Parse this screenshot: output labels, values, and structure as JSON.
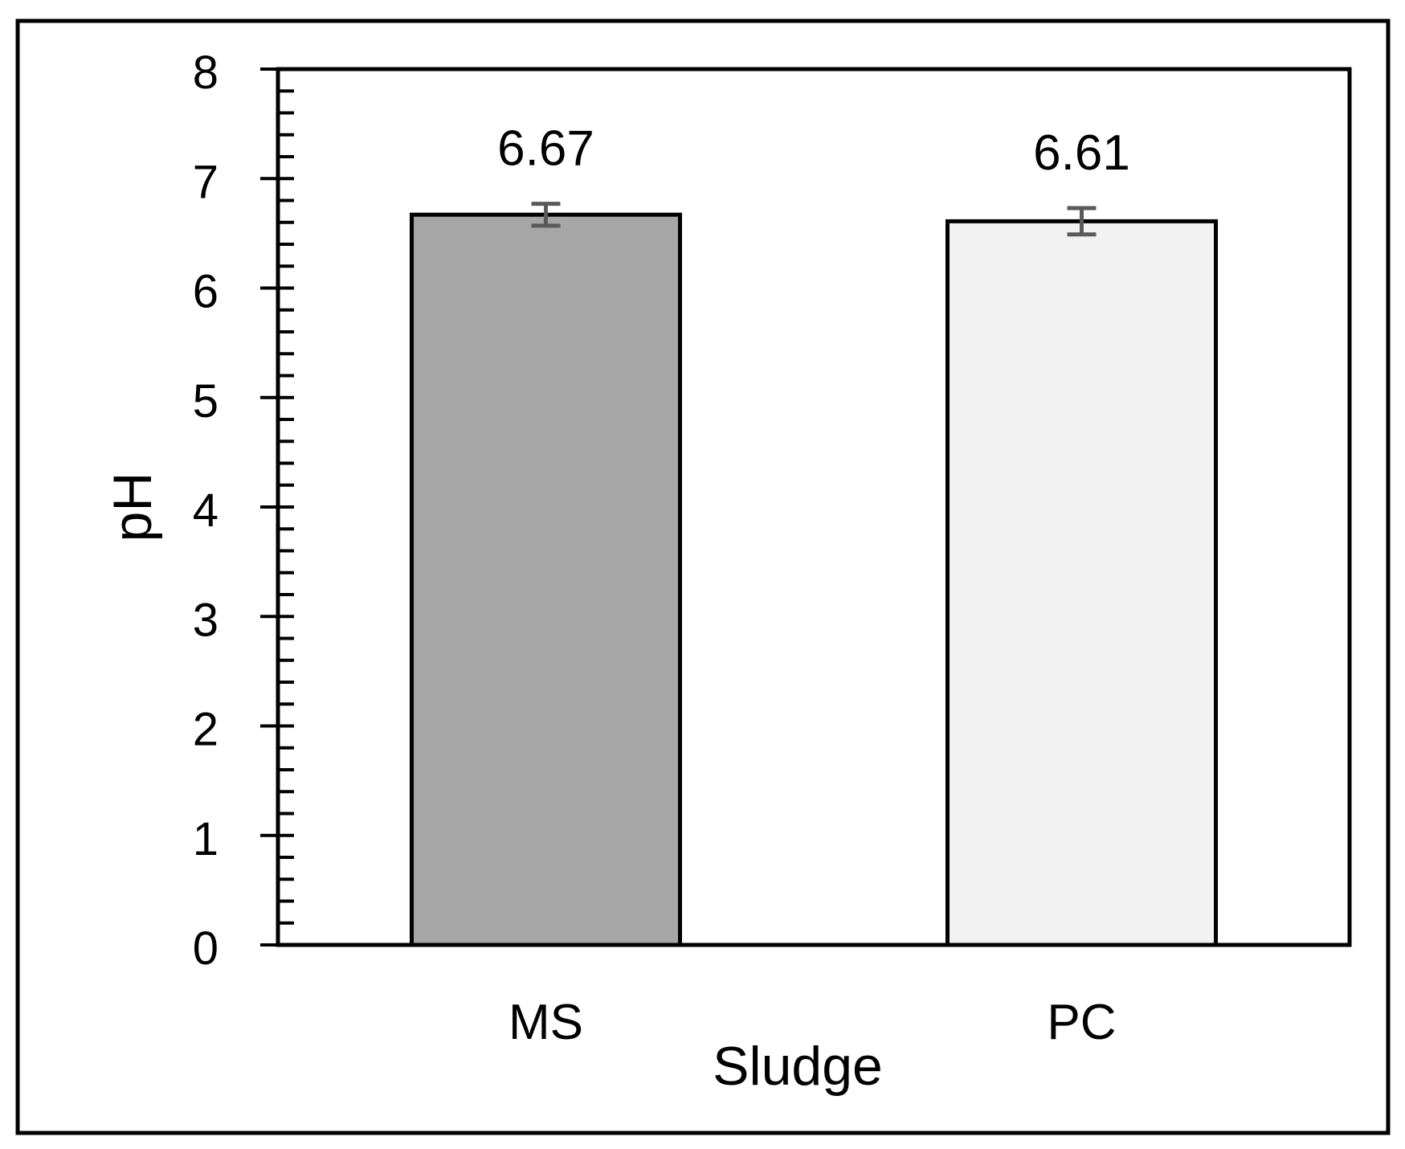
{
  "chart_data": {
    "type": "bar",
    "title": "",
    "xlabel": "Sludge",
    "ylabel": "pH",
    "ylim": [
      0,
      8
    ],
    "yticks": [
      "0",
      "1",
      "2",
      "3",
      "4",
      "5",
      "6",
      "7",
      "8"
    ],
    "minor_ticks_per_major": 5,
    "grid": false,
    "legend": "none",
    "categories": [
      "MS",
      "PC"
    ],
    "values": [
      6.67,
      6.61
    ],
    "value_labels": [
      "6.67",
      "6.61"
    ],
    "error": [
      0.1,
      0.12
    ],
    "colors": {
      "bars": [
        "#a6a6a6",
        "#f2f2f2"
      ],
      "outline": "#000000",
      "error_bars": "#595959"
    }
  }
}
